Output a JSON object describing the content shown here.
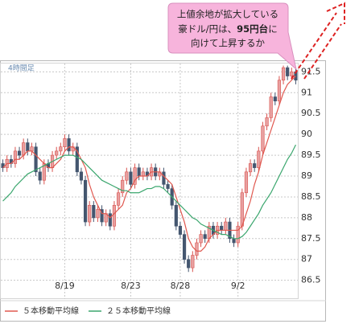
{
  "chart_data": {
    "type": "candlestick",
    "timeframe": "4時間足",
    "annotation": {
      "line1": "上値余地が拡大している",
      "line2": [
        "豪ドル/円は、",
        "95円台",
        "に"
      ],
      "line3": "向けて上昇するか"
    },
    "categories": [
      null,
      null,
      null,
      null,
      null,
      null,
      null,
      null,
      null,
      null,
      null,
      null,
      null,
      null,
      null,
      "8/19",
      null,
      null,
      null,
      null,
      null,
      null,
      null,
      null,
      null,
      null,
      null,
      null,
      null,
      null,
      null,
      "8/23",
      null,
      null,
      null,
      null,
      null,
      null,
      null,
      null,
      null,
      null,
      null,
      "8/28",
      null,
      null,
      null,
      null,
      null,
      null,
      null,
      null,
      null,
      null,
      null,
      null,
      null,
      "9/2",
      null,
      null,
      null,
      null,
      null,
      null,
      null,
      null,
      null,
      null,
      null,
      null,
      null,
      null
    ],
    "open": [
      89.3,
      89.2,
      89.4,
      89.3,
      89.6,
      89.5,
      89.8,
      89.6,
      89.7,
      89.1,
      88.9,
      89.3,
      89.2,
      89.5,
      89.6,
      89.7,
      89.9,
      89.6,
      89.7,
      89.1,
      88.9,
      87.9,
      88.3,
      88.0,
      88.2,
      87.9,
      88.1,
      87.8,
      88.3,
      88.6,
      88.9,
      89.1,
      88.8,
      89.2,
      89.0,
      89.1,
      89.0,
      89.2,
      89.0,
      89.1,
      88.8,
      88.7,
      88.3,
      87.8,
      87.6,
      87.0,
      86.8,
      87.1,
      87.4,
      87.6,
      87.5,
      87.8,
      87.6,
      87.8,
      87.7,
      87.9,
      87.5,
      87.4,
      87.8,
      88.6,
      89.1,
      89.3,
      89.2,
      89.6,
      90.2,
      90.4,
      90.9,
      90.8,
      91.3,
      91.6,
      91.4,
      91.5
    ],
    "high": [
      89.4,
      89.5,
      89.5,
      89.7,
      89.7,
      89.9,
      89.9,
      89.8,
      89.8,
      89.2,
      89.4,
      89.4,
      89.6,
      89.7,
      89.8,
      90.0,
      90.0,
      89.8,
      89.8,
      89.2,
      89.0,
      88.4,
      88.4,
      88.3,
      88.3,
      88.2,
      88.2,
      88.4,
      88.7,
      89.0,
      89.2,
      89.2,
      89.3,
      89.3,
      89.2,
      89.2,
      89.3,
      89.3,
      89.2,
      89.2,
      88.9,
      88.8,
      88.4,
      87.9,
      87.7,
      87.1,
      87.2,
      87.5,
      87.7,
      87.7,
      87.9,
      87.9,
      87.9,
      87.9,
      88.0,
      88.0,
      87.6,
      87.9,
      88.7,
      89.2,
      89.4,
      89.4,
      89.7,
      90.3,
      90.5,
      91.0,
      91.0,
      91.4,
      91.65,
      91.65,
      91.6,
      91.6
    ],
    "low": [
      89.1,
      89.1,
      89.2,
      89.2,
      89.4,
      89.4,
      89.5,
      89.5,
      89.0,
      88.8,
      88.8,
      89.1,
      89.1,
      89.4,
      89.5,
      89.6,
      89.5,
      89.5,
      89.0,
      88.8,
      87.8,
      87.8,
      87.9,
      87.9,
      87.8,
      87.8,
      87.7,
      87.7,
      88.2,
      88.5,
      88.8,
      88.7,
      88.7,
      88.9,
      88.9,
      88.9,
      88.9,
      88.9,
      88.9,
      88.7,
      88.6,
      88.2,
      87.7,
      87.5,
      86.9,
      86.7,
      86.7,
      87.0,
      87.3,
      87.4,
      87.4,
      87.5,
      87.5,
      87.6,
      87.6,
      87.4,
      87.3,
      87.3,
      87.7,
      88.5,
      89.0,
      89.1,
      89.1,
      89.5,
      90.1,
      90.3,
      90.7,
      90.7,
      91.2,
      91.3,
      91.3,
      91.2
    ],
    "close": [
      89.2,
      89.4,
      89.3,
      89.6,
      89.5,
      89.8,
      89.6,
      89.7,
      89.1,
      88.9,
      89.3,
      89.2,
      89.5,
      89.6,
      89.7,
      89.9,
      89.6,
      89.7,
      89.1,
      88.9,
      87.9,
      88.3,
      88.0,
      88.2,
      87.9,
      88.1,
      87.8,
      88.3,
      88.6,
      88.9,
      89.1,
      88.8,
      89.2,
      89.0,
      89.1,
      89.0,
      89.2,
      89.0,
      89.1,
      88.8,
      88.7,
      88.3,
      87.8,
      87.6,
      87.0,
      86.8,
      87.1,
      87.4,
      87.6,
      87.5,
      87.8,
      87.6,
      87.8,
      87.7,
      87.9,
      87.5,
      87.4,
      87.8,
      88.6,
      89.1,
      89.3,
      89.2,
      89.6,
      90.2,
      90.4,
      90.9,
      90.8,
      91.3,
      91.6,
      91.4,
      91.5,
      91.3
    ],
    "up_color": "#e8a0a0",
    "up_stroke": "#d9534f",
    "down_color": "#44566f",
    "series": [
      {
        "name": "５本移動平均線",
        "color": "#e0584f",
        "values": [
          89.2,
          89.3,
          89.3,
          89.4,
          89.4,
          89.5,
          89.6,
          89.6,
          89.5,
          89.4,
          89.3,
          89.2,
          89.2,
          89.3,
          89.4,
          89.6,
          89.7,
          89.7,
          89.6,
          89.4,
          89.2,
          88.8,
          88.5,
          88.3,
          88.1,
          88.1,
          88.0,
          88.1,
          88.2,
          88.3,
          88.6,
          88.7,
          88.9,
          89.0,
          89.0,
          89.0,
          89.1,
          89.1,
          89.1,
          89.0,
          88.9,
          88.8,
          88.5,
          88.2,
          87.9,
          87.5,
          87.3,
          87.2,
          87.2,
          87.3,
          87.5,
          87.6,
          87.7,
          87.7,
          87.7,
          87.7,
          87.7,
          87.7,
          87.8,
          88.1,
          88.4,
          88.8,
          89.1,
          89.5,
          89.8,
          90.1,
          90.4,
          90.7,
          91.0,
          91.2,
          91.3,
          91.4
        ]
      },
      {
        "name": "２５本移動平均線",
        "color": "#3aa66d",
        "values": [
          88.4,
          88.5,
          88.6,
          88.75,
          88.85,
          88.95,
          89.05,
          89.1,
          89.15,
          89.2,
          89.25,
          89.3,
          89.35,
          89.4,
          89.45,
          89.5,
          89.5,
          89.5,
          89.45,
          89.4,
          89.3,
          89.2,
          89.1,
          89.0,
          88.9,
          88.85,
          88.8,
          88.75,
          88.7,
          88.65,
          88.65,
          88.6,
          88.6,
          88.6,
          88.65,
          88.7,
          88.7,
          88.75,
          88.75,
          88.7,
          88.6,
          88.5,
          88.4,
          88.3,
          88.2,
          88.1,
          88.0,
          87.95,
          87.85,
          87.8,
          87.75,
          87.7,
          87.65,
          87.6,
          87.6,
          87.55,
          87.5,
          87.5,
          87.55,
          87.65,
          87.8,
          87.95,
          88.1,
          88.3,
          88.45,
          88.6,
          88.8,
          89.0,
          89.2,
          89.4,
          89.55,
          89.75
        ]
      }
    ],
    "ylim": [
      86.05,
      91.7
    ],
    "yticks": [
      86.5,
      87,
      87.5,
      88,
      88.5,
      89,
      89.5,
      90,
      90.5,
      91,
      91.5
    ],
    "grid": true
  }
}
